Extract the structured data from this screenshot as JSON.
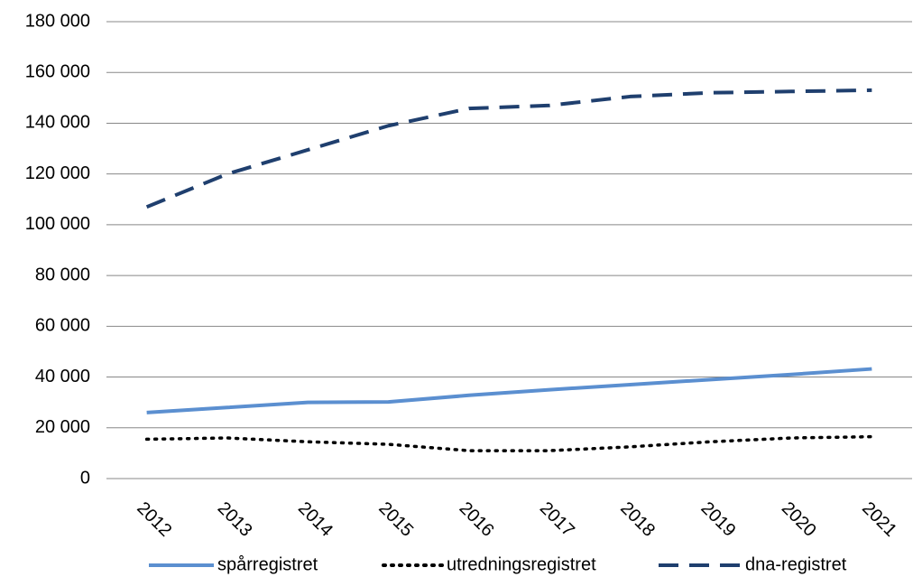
{
  "chart_data": {
    "type": "line",
    "categories": [
      "2012",
      "2013",
      "2014",
      "2015",
      "2016",
      "2017",
      "2018",
      "2019",
      "2020",
      "2021"
    ],
    "series": [
      {
        "name": "spårregistret",
        "color": "#5b8fd0",
        "style": "solid",
        "values": [
          26000,
          28000,
          30000,
          30200,
          32800,
          35000,
          37000,
          39000,
          41000,
          43200
        ]
      },
      {
        "name": "utredningsregistret",
        "color": "#000000",
        "style": "dotted",
        "values": [
          15500,
          16000,
          14500,
          13500,
          11000,
          11000,
          12500,
          14500,
          16000,
          16500
        ]
      },
      {
        "name": "dna-registret",
        "color": "#1f3f6e",
        "style": "dashed",
        "values": [
          107000,
          120000,
          129500,
          139000,
          145800,
          147000,
          150500,
          152000,
          152500,
          153000
        ]
      }
    ],
    "ylim": [
      0,
      180000
    ],
    "yticks": [
      0,
      {
        "value": 20000,
        "label": "20 000"
      },
      {
        "value": 40000,
        "label": "40 000"
      },
      {
        "value": 60000,
        "label": "60 000"
      },
      {
        "value": 80000,
        "label": "80 000"
      },
      {
        "value": 100000,
        "label": "100 000"
      },
      {
        "value": 120000,
        "label": "120 000"
      },
      {
        "value": 140000,
        "label": "140 000"
      },
      {
        "value": 160000,
        "label": "160 000"
      },
      {
        "value": 180000,
        "label": "180 000"
      }
    ],
    "grid": true,
    "legend": "bottom"
  }
}
